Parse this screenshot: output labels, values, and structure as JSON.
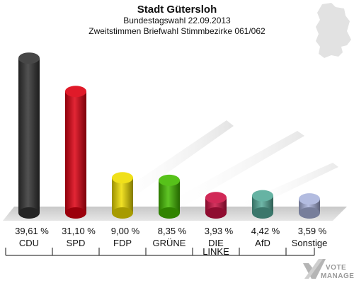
{
  "chart_data": {
    "type": "bar",
    "title": "Stadt Gütersloh",
    "subtitle_1": "Bundestagswahl 22.09.2013",
    "subtitle_2": "Zweitstimmen Briefwahl Stimmbezirke 061/062",
    "categories": [
      "CDU",
      "SPD",
      "FDP",
      "GRÜNE",
      "DIE LINKE",
      "AfD",
      "Sonstige"
    ],
    "category_lines": [
      [
        "CDU"
      ],
      [
        "SPD"
      ],
      [
        "FDP"
      ],
      [
        "GRÜNE"
      ],
      [
        "DIE",
        "LINKE"
      ],
      [
        "AfD"
      ],
      [
        "Sonstige"
      ]
    ],
    "values": [
      39.61,
      31.1,
      9.0,
      8.35,
      3.93,
      4.42,
      3.59
    ],
    "value_labels": [
      "39,61 %",
      "31,10 %",
      "9,00 %",
      "8,35 %",
      "3,93 %",
      "4,42 %",
      "3,59 %"
    ],
    "colors": [
      "#333333",
      "#dd0011",
      "#eedd00",
      "#44bb00",
      "#cc1144",
      "#55aa99",
      "#aab4dd"
    ],
    "ylim": [
      0,
      42
    ],
    "grid": false,
    "legend": "none"
  },
  "logo": {
    "line1": "VOTE",
    "line2": "MANAGER"
  }
}
